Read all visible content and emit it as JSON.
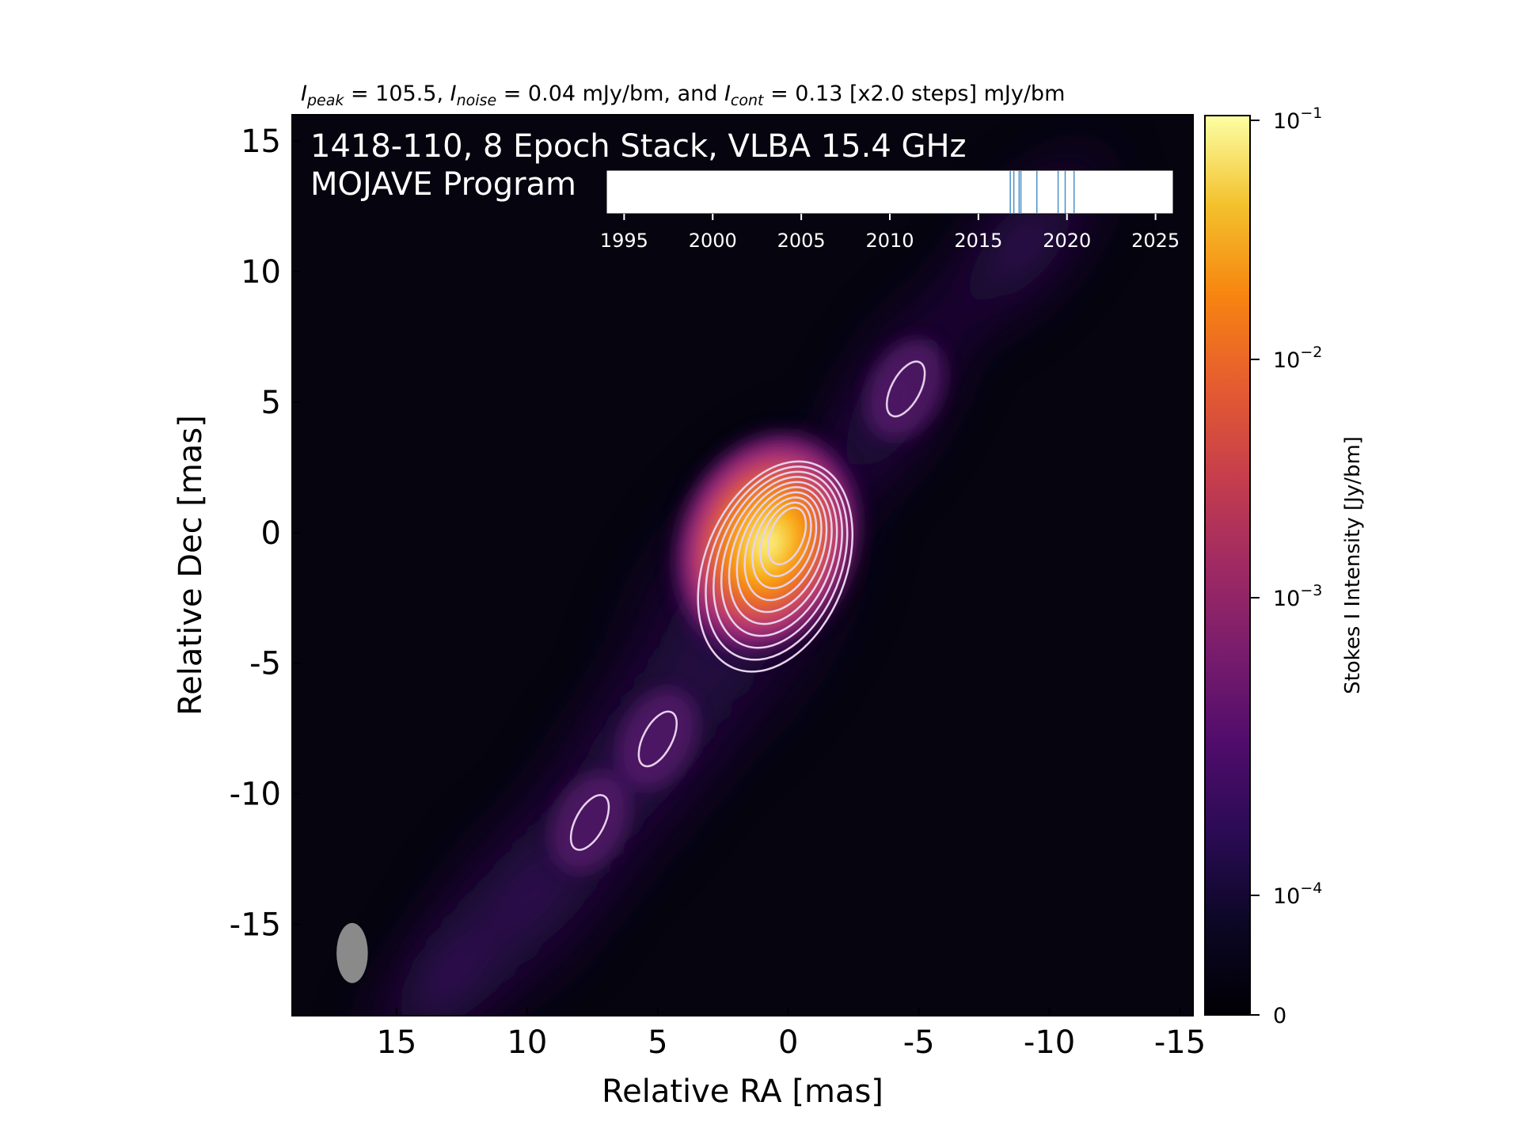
{
  "header": {
    "title_parts": [
      {
        "text": "I",
        "style": "italic"
      },
      {
        "text": "peak",
        "style": "italic-sub"
      },
      {
        "text": " = 105.5, ",
        "style": "normal"
      },
      {
        "text": "I",
        "style": "italic"
      },
      {
        "text": "noise",
        "style": "italic-sub"
      },
      {
        "text": " = 0.04 mJy/bm, and ",
        "style": "normal"
      },
      {
        "text": "I",
        "style": "italic"
      },
      {
        "text": "cont",
        "style": "italic-sub"
      },
      {
        "text": " = 0.13 [x2.0 steps] mJy/bm",
        "style": "normal"
      }
    ]
  },
  "annotation": {
    "line1": "1418-110, 8 Epoch Stack, VLBA 15.4 GHz",
    "line2": "MOJAVE Program"
  },
  "chart_data": {
    "type": "heatmap",
    "xlabel": "Relative RA [mas]",
    "ylabel": "Relative Dec [mas]",
    "xlim": [
      19,
      -15.5
    ],
    "ylim": [
      -18.5,
      16
    ],
    "x_ticks": [
      15,
      10,
      5,
      0,
      -5,
      -10,
      -15
    ],
    "x_tick_labels": [
      "15",
      "10",
      "5",
      "0",
      "-5",
      "-10",
      "-15"
    ],
    "y_ticks": [
      15,
      10,
      5,
      0,
      -5,
      -10,
      -15
    ],
    "y_tick_labels": [
      "15",
      "10",
      "5",
      "0",
      "-5",
      "-10",
      "-15"
    ],
    "colormap": "inferno",
    "colorbar": {
      "label": "Stokes I Intensity [Jy/bm]",
      "scale": "log",
      "ticks": [
        {
          "base": "10",
          "exp": "−1"
        },
        {
          "base": "10",
          "exp": "−2"
        },
        {
          "base": "10",
          "exp": "−3"
        },
        {
          "base": "10",
          "exp": "−4"
        },
        {
          "base": "0",
          "exp": ""
        }
      ]
    },
    "peak_jy_per_beam": 0.1055,
    "contours_mjy_per_beam": [
      0.13,
      0.26,
      0.52,
      1.04,
      2.08,
      4.16,
      8.32,
      16.64,
      33.28,
      66.56
    ],
    "contour_color": "#e7d2ec",
    "core": {
      "x": 0,
      "y": 0
    },
    "jet_features": [
      {
        "x": -4.5,
        "y": 5.5
      },
      {
        "x": 5,
        "y": -7.9
      },
      {
        "x": 7.6,
        "y": -11.1
      }
    ],
    "beam": {
      "x": 16.7,
      "y": -16.1,
      "major_mas": 2.3,
      "minor_mas": 1.2,
      "pa_deg": 0
    },
    "epochs_inset": {
      "xlim": [
        1994,
        2026
      ],
      "ticks": [
        1995,
        2000,
        2005,
        2010,
        2015,
        2020,
        2025
      ],
      "tick_labels": [
        "1995",
        "2000",
        "2005",
        "2010",
        "2015",
        "2020",
        "2025"
      ],
      "epochs": [
        2016.8,
        2017.0,
        2017.3,
        2017.4,
        2018.3,
        2019.5,
        2019.9,
        2020.4
      ],
      "line_color": "#4a90c8"
    }
  }
}
